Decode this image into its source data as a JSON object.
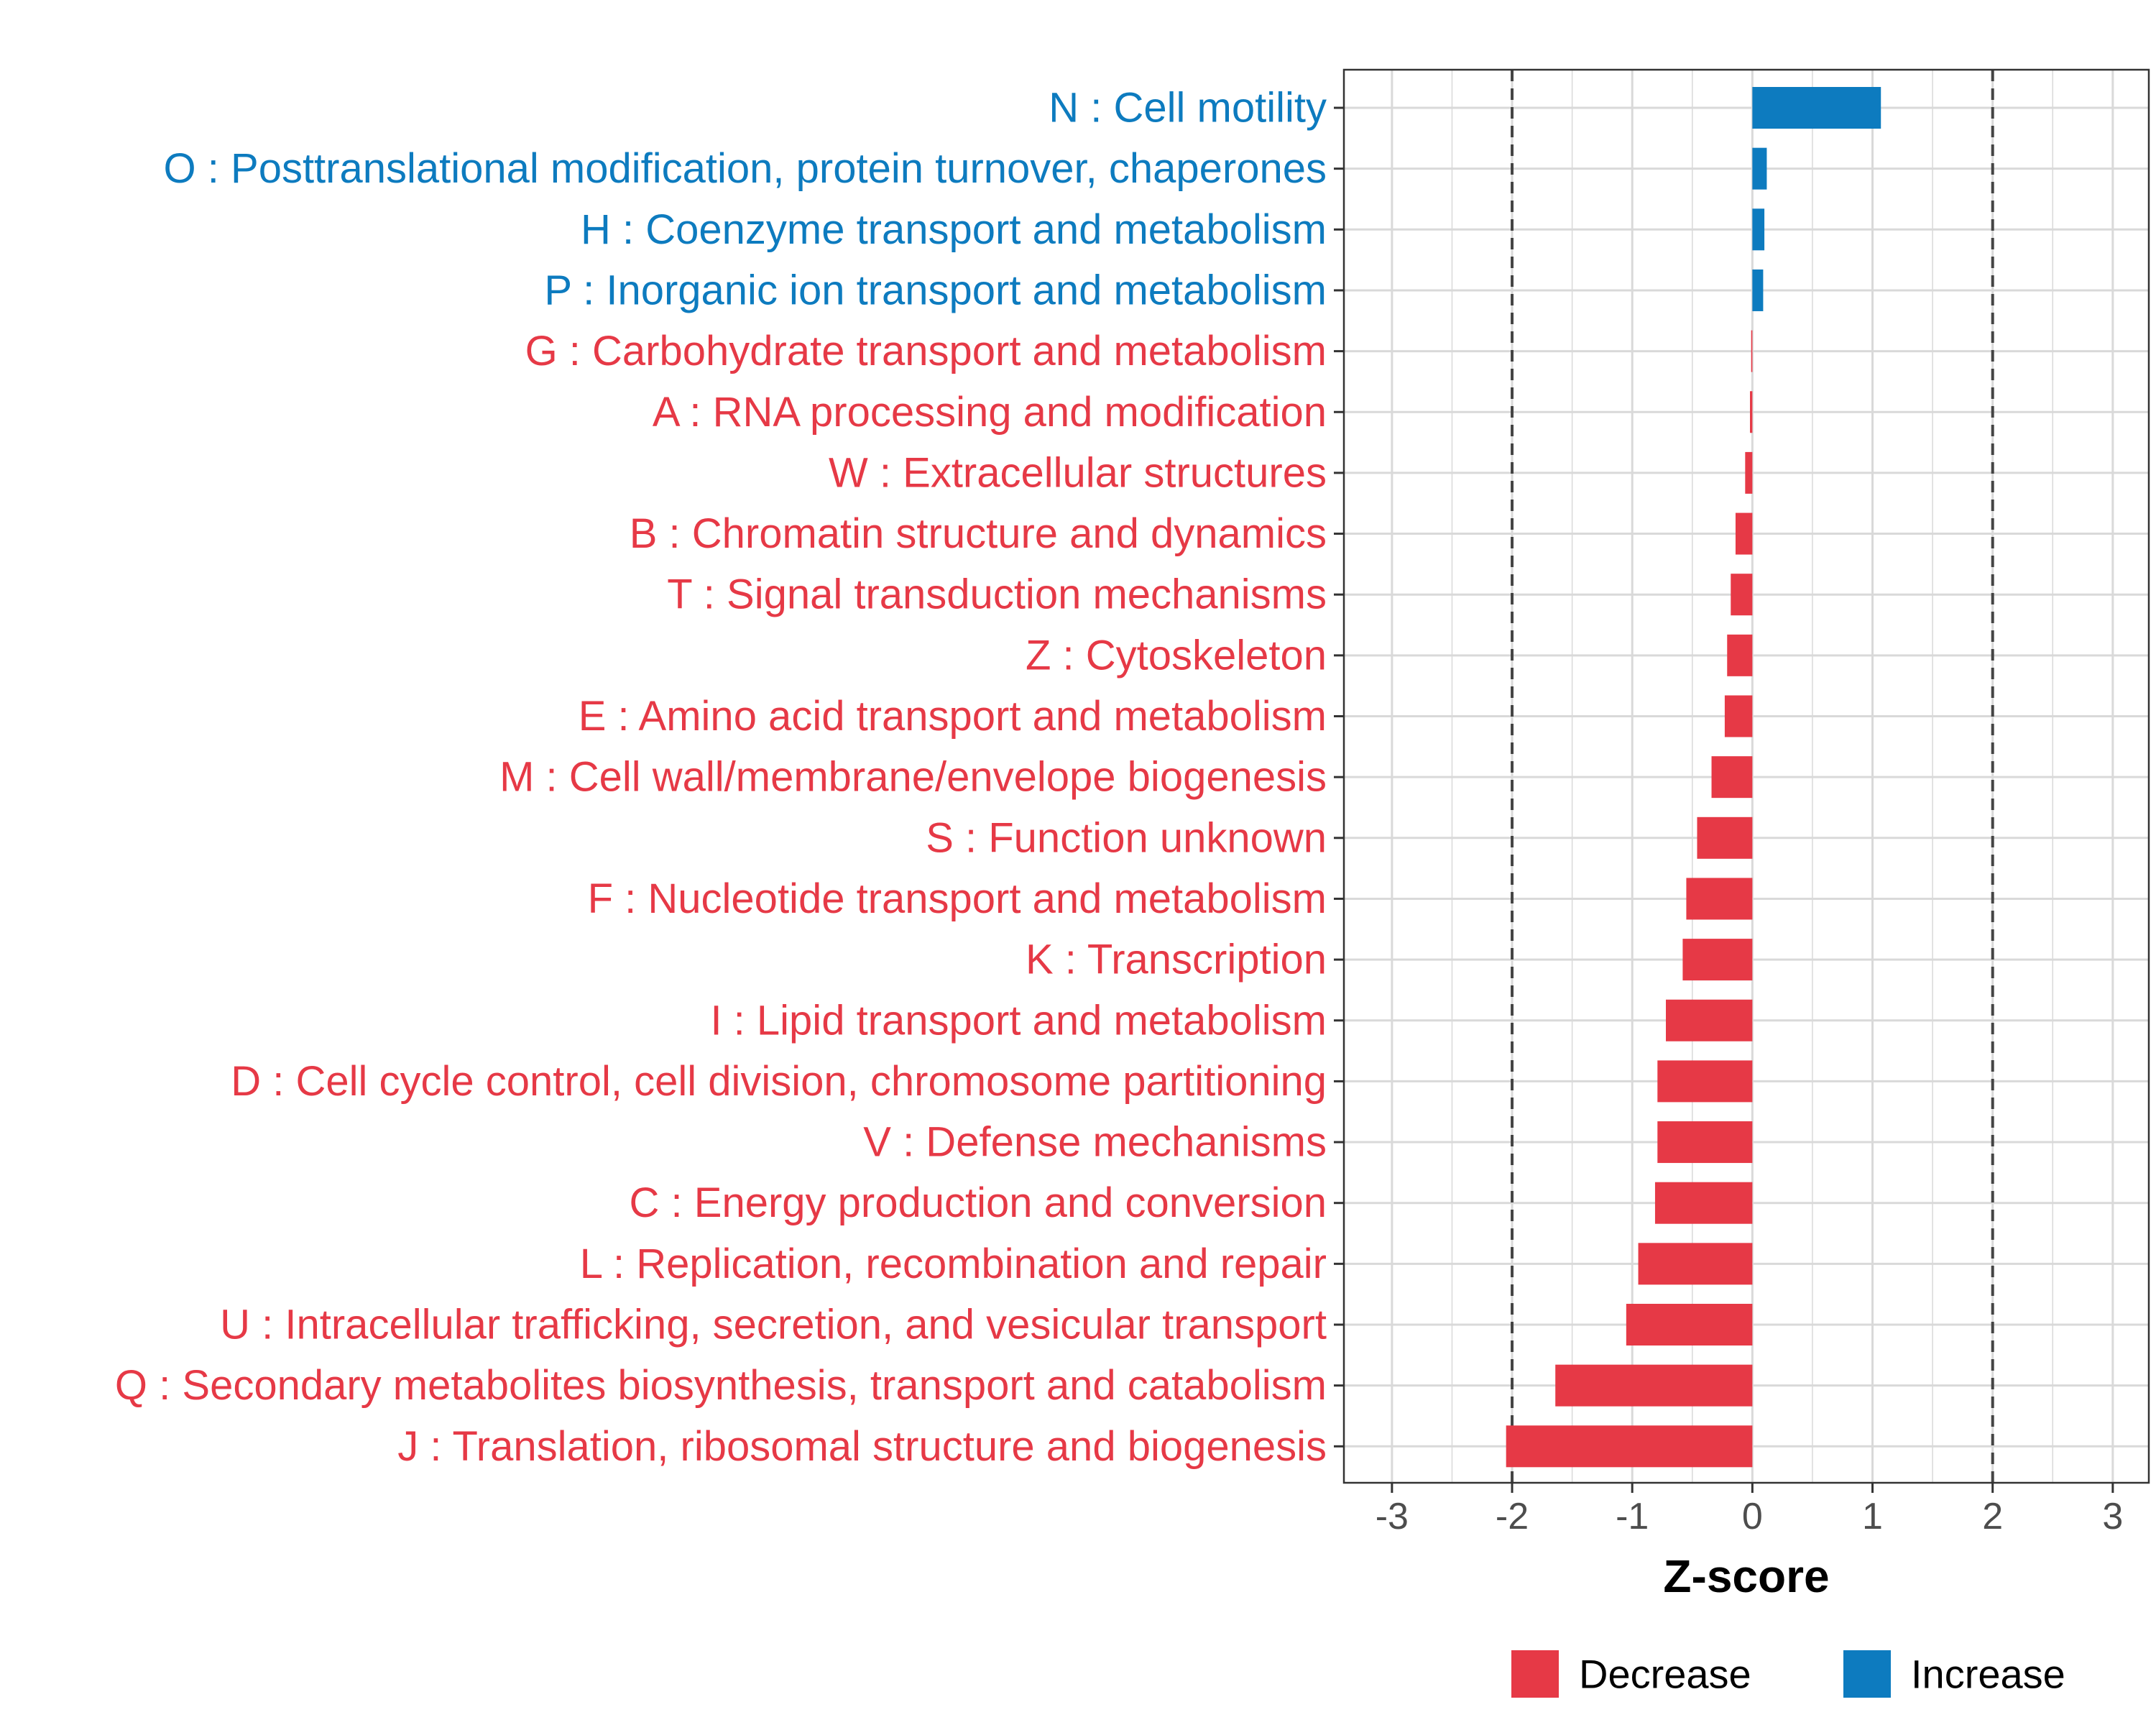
{
  "chart_data": {
    "type": "bar",
    "orientation": "horizontal",
    "xlabel": "Z-score",
    "xlim": [
      -3.4,
      3.3
    ],
    "xticks": [
      -3,
      -2,
      -1,
      0,
      1,
      2,
      3
    ],
    "xtick_labels": [
      "-3",
      "-2",
      "-1",
      "0",
      "1",
      "2",
      "3"
    ],
    "reference_lines": [
      -2,
      2
    ],
    "grid": true,
    "colors": {
      "Decrease": "#e63946",
      "Increase": "#0d7bbf"
    },
    "legend": {
      "position": "bottom",
      "entries": [
        {
          "name": "Decrease",
          "color": "#e63946"
        },
        {
          "name": "Increase",
          "color": "#0d7bbf"
        }
      ]
    },
    "categories": [
      "N : Cell motility",
      "O : Posttranslational modification, protein turnover, chaperones",
      "H : Coenzyme transport and metabolism",
      "P : Inorganic ion transport and metabolism",
      "G : Carbohydrate transport and metabolism",
      "A : RNA processing and modification",
      "W : Extracellular structures",
      "B : Chromatin structure and dynamics",
      "T : Signal transduction mechanisms",
      "Z : Cytoskeleton",
      "E : Amino acid transport and metabolism",
      "M : Cell wall/membrane/envelope biogenesis",
      "S : Function unknown",
      "F : Nucleotide transport and metabolism",
      "K : Transcription",
      "I : Lipid transport and metabolism",
      "D : Cell cycle control, cell division, chromosome partitioning",
      "V : Defense mechanisms",
      "C : Energy production and conversion",
      "L : Replication, recombination and repair",
      "U : Intracellular trafficking, secretion, and vesicular transport",
      "Q : Secondary metabolites biosynthesis, transport and catabolism",
      "J : Translation, ribosomal structure and biogenesis"
    ],
    "values": [
      1.07,
      0.12,
      0.1,
      0.09,
      -0.01,
      -0.02,
      -0.06,
      -0.14,
      -0.18,
      -0.21,
      -0.23,
      -0.34,
      -0.46,
      -0.55,
      -0.58,
      -0.72,
      -0.79,
      -0.79,
      -0.81,
      -0.95,
      -1.05,
      -1.64,
      -2.05
    ],
    "groups": [
      "Increase",
      "Increase",
      "Increase",
      "Increase",
      "Decrease",
      "Decrease",
      "Decrease",
      "Decrease",
      "Decrease",
      "Decrease",
      "Decrease",
      "Decrease",
      "Decrease",
      "Decrease",
      "Decrease",
      "Decrease",
      "Decrease",
      "Decrease",
      "Decrease",
      "Decrease",
      "Decrease",
      "Decrease",
      "Decrease"
    ]
  }
}
